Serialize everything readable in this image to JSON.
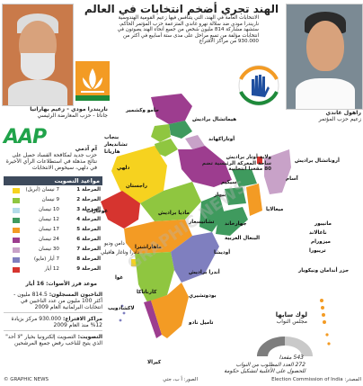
{
  "title": "الهند تجري أضخم انتخابات في العالم",
  "intro": "الانتخابات العامة في الهند، التي يتنافس فيها زعيم القومية الهندوسية ناريندرا مودي ضد سلالة نهرو غاندي المتزعمة حزب المؤتمر الحاكم، ستشهد مشاركة 814 مليون شخص من جميع أنحاء الهند يصوتون في انتخابات مؤلفة من تسع مراحل على مدى ستة أسابيع في أكثر من 930.000 من مراكز الاقتراع",
  "modi": {
    "name": "ناريندرا مودي - زعيم بهاراتيا",
    "party": "جاناتا - حزب المعارضة الرئيسي"
  },
  "gandhi": {
    "name": "راهول غاندي",
    "role": "زعيم حزب المؤتمر"
  },
  "aap": {
    "logo": "AAP",
    "name": "آم آدمي",
    "desc": "حزب جديد لمكافحة الفساد حصل على نتائج مذهلة في استطلاعات الرأي الأخيرة في دلهي، سيخوض الانتخابات"
  },
  "schedule": {
    "header": "مواعيد التصويت",
    "rows": [
      {
        "phase": "المرحلة 1",
        "date": "7 نيسان (أبريل)",
        "color": "#f6d21f"
      },
      {
        "phase": "المرحلة 2",
        "date": "9 نيسان",
        "color": "#8fc640"
      },
      {
        "phase": "المرحلة 3",
        "date": "10 نيسان",
        "color": "#b3dbe9"
      },
      {
        "phase": "المرحلة 4",
        "date": "12 نيسان",
        "color": "#3f9a5e"
      },
      {
        "phase": "المرحلة 5",
        "date": "17 نيسان",
        "color": "#f39b24"
      },
      {
        "phase": "المرحلة 6",
        "date": "24 نيسان",
        "color": "#9d3d8f"
      },
      {
        "phase": "المرحلة 7",
        "date": "30 نيسان",
        "color": "#c8a2c8"
      },
      {
        "phase": "المرحلة 8",
        "date": "7 أيار (مايو)",
        "color": "#7f7fbf"
      },
      {
        "phase": "المرحلة 9",
        "date": "12 أيار",
        "color": "#d6342f"
      }
    ],
    "count_date": "موعد فرز الأصوات: 16 أيار"
  },
  "facts": [
    {
      "label": "الناخبون المسجلون:",
      "text": "814.5 مليون - أكثر 100 مليون من عدد الناخبين في انتخابات البرلمانية العام 2009"
    },
    {
      "label": "مراكز الاقتراع:",
      "text": "930.000 مركز بزيادة 12% منذ العام 2009"
    },
    {
      "label": "التصويت:",
      "text": "التصويت إلكترونيا بخيار \"لا أحد\" الذي يتيح للناخب رفض جميع المرشحين"
    }
  ],
  "lok_sabha": {
    "title": "لوك سابها",
    "subtitle": "مجلس النواب",
    "seats": "543 مقعدا",
    "majority": "272 العدد المطلوب من النواب للحصول على الأغلبية لتشكيل حكومة"
  },
  "map_labels": {
    "jk": "جامو وكشمير",
    "hp": "هيماتشال براديش",
    "punjab": "بنجاب",
    "chandigarh": "تشانديغار",
    "haryana": "هاريانا",
    "uttarakhand": "أوتاراكهاند",
    "delhi": "دلهي",
    "rajasthan": "راجستان",
    "up": "ولاية أوتار براديش",
    "up_note": "ساحة المعركة الرئيسية تضم 80 مقعدا انتخابية",
    "sikkim": "سيكيم",
    "bihar": "بيهار",
    "arunachal": "أروناتشال براديش",
    "assam": "آسام",
    "nagaland": "ناغالاند",
    "manipur": "مانيبور",
    "mizoram": "ميزورام",
    "tripura": "تريبورا",
    "meghalaya": "ميغالايا",
    "wb": "البنغال الغربية",
    "jharkhand": "جهارخاند",
    "gujarat": "غوجارات",
    "mp": "ماديا براديش",
    "chhattisgarh": "تشاتيسغار",
    "odisha": "أوديشا",
    "maharashtra": "ماهاراشترا",
    "dnh": "دادرا وناغار هافيلي",
    "daman": "دامن وديو",
    "goa": "غوا",
    "telangana": "أندرا براديش",
    "karnataka": "كارناتاكا",
    "lakshadweep": "لاكشادويب",
    "tn": "تاميل نادو",
    "kerala": "كيرالا",
    "puducherry": "بودوتشيري",
    "andaman": "جزر أندامان ونيكوبار"
  },
  "footer": {
    "left": "© GRAPHIC NEWS",
    "mid": "الصور: أ ب، جتي",
    "right": "المصدر: Election Commission of India"
  }
}
